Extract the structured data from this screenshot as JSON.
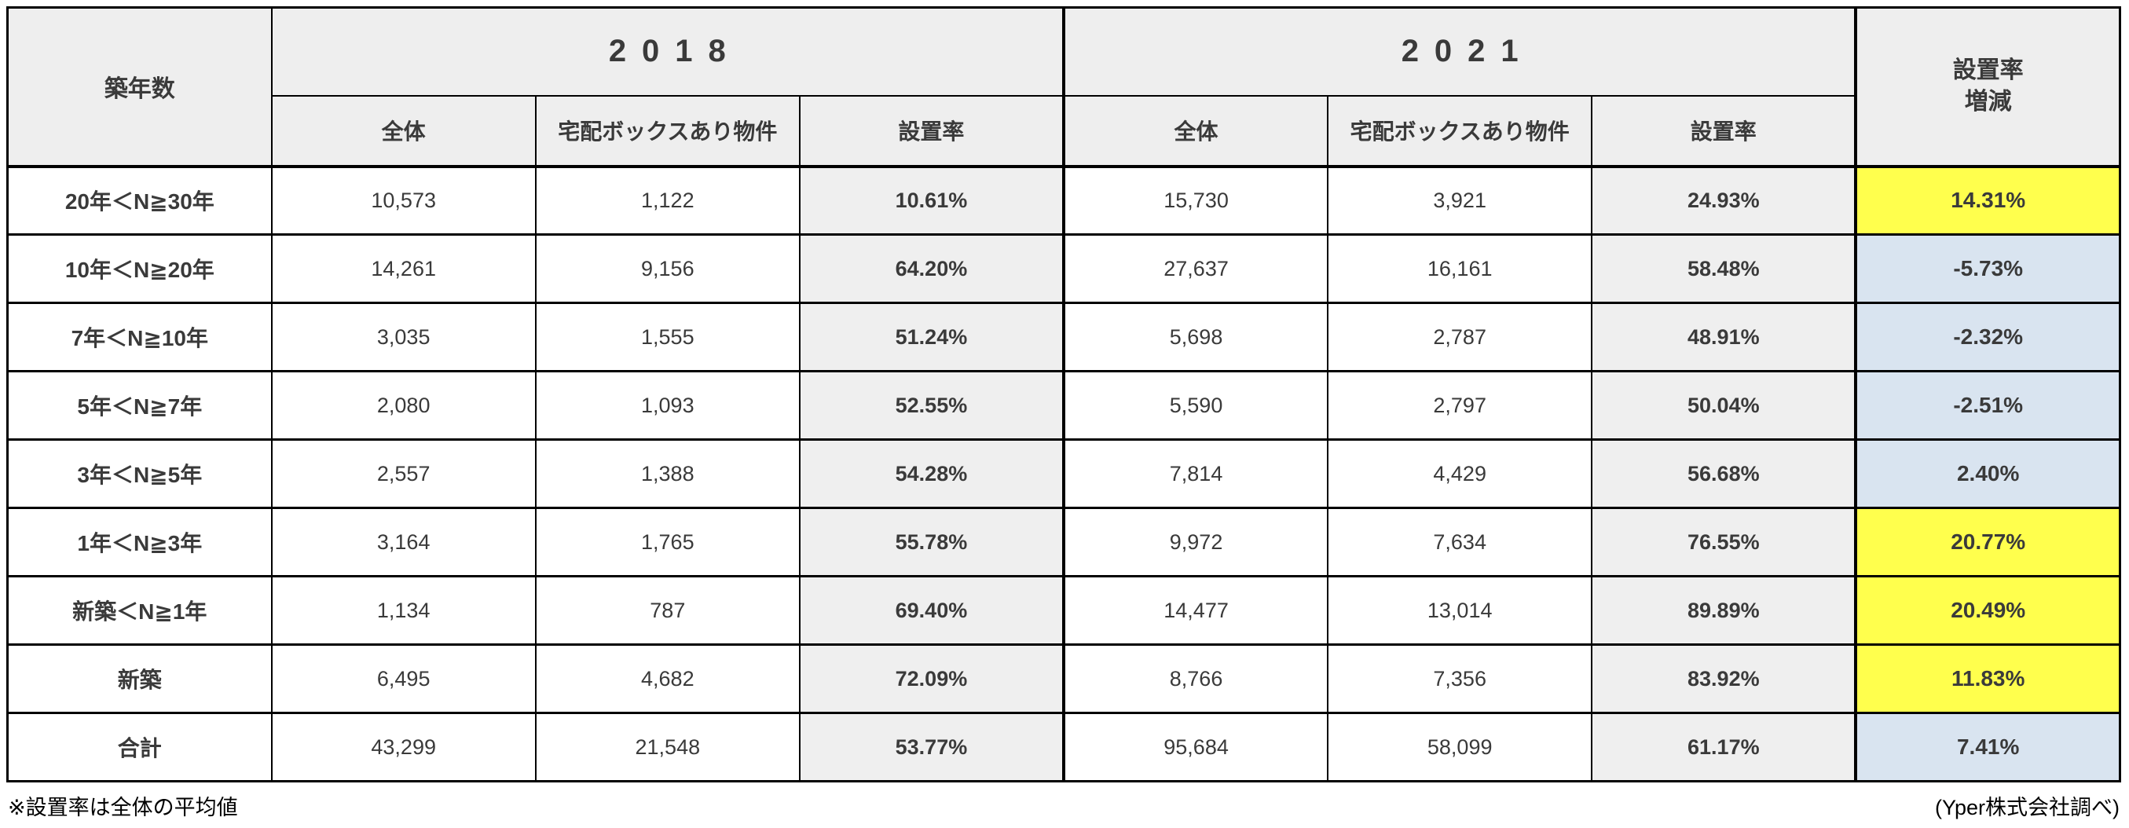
{
  "table": {
    "corner_header": "築年数",
    "group_2018": "2018",
    "group_2021": "2021",
    "change_header": "設置率\n増減",
    "sub_headers": {
      "total": "全体",
      "with_box": "宅配ボックスあり物件",
      "rate": "設置率"
    },
    "colors": {
      "header_bg": "#eeeeee",
      "rate_cell_bg": "#efefef",
      "highlight_yellow": "#ffff4d",
      "highlight_blue": "#d9e4f0",
      "border": "#000000",
      "text": "#3a3a3a"
    },
    "rows": [
      {
        "label": "20年＜N≧30年",
        "y2018": {
          "total": "10,573",
          "with_box": "1,122",
          "rate": "10.61%"
        },
        "y2021": {
          "total": "15,730",
          "with_box": "3,921",
          "rate": "24.93%"
        },
        "change": "14.31%",
        "highlight": "#ffff4d"
      },
      {
        "label": "10年＜N≧20年",
        "y2018": {
          "total": "14,261",
          "with_box": "9,156",
          "rate": "64.20%"
        },
        "y2021": {
          "total": "27,637",
          "with_box": "16,161",
          "rate": "58.48%"
        },
        "change": "-5.73%",
        "highlight": "#d9e4f0"
      },
      {
        "label": "7年＜N≧10年",
        "y2018": {
          "total": "3,035",
          "with_box": "1,555",
          "rate": "51.24%"
        },
        "y2021": {
          "total": "5,698",
          "with_box": "2,787",
          "rate": "48.91%"
        },
        "change": "-2.32%",
        "highlight": "#d9e4f0"
      },
      {
        "label": "5年＜N≧7年",
        "y2018": {
          "total": "2,080",
          "with_box": "1,093",
          "rate": "52.55%"
        },
        "y2021": {
          "total": "5,590",
          "with_box": "2,797",
          "rate": "50.04%"
        },
        "change": "-2.51%",
        "highlight": "#d9e4f0"
      },
      {
        "label": "3年＜N≧5年",
        "y2018": {
          "total": "2,557",
          "with_box": "1,388",
          "rate": "54.28%"
        },
        "y2021": {
          "total": "7,814",
          "with_box": "4,429",
          "rate": "56.68%"
        },
        "change": "2.40%",
        "highlight": "#d9e4f0"
      },
      {
        "label": "1年＜N≧3年",
        "y2018": {
          "total": "3,164",
          "with_box": "1,765",
          "rate": "55.78%"
        },
        "y2021": {
          "total": "9,972",
          "with_box": "7,634",
          "rate": "76.55%"
        },
        "change": "20.77%",
        "highlight": "#ffff4d"
      },
      {
        "label": "新築＜N≧1年",
        "y2018": {
          "total": "1,134",
          "with_box": "787",
          "rate": "69.40%"
        },
        "y2021": {
          "total": "14,477",
          "with_box": "13,014",
          "rate": "89.89%"
        },
        "change": "20.49%",
        "highlight": "#ffff4d"
      },
      {
        "label": "新築",
        "y2018": {
          "total": "6,495",
          "with_box": "4,682",
          "rate": "72.09%"
        },
        "y2021": {
          "total": "8,766",
          "with_box": "7,356",
          "rate": "83.92%"
        },
        "change": "11.83%",
        "highlight": "#ffff4d"
      },
      {
        "label": "合計",
        "y2018": {
          "total": "43,299",
          "with_box": "21,548",
          "rate": "53.77%"
        },
        "y2021": {
          "total": "95,684",
          "with_box": "58,099",
          "rate": "61.17%"
        },
        "change": "7.41%",
        "highlight": "#d9e4f0"
      }
    ]
  },
  "footnotes": {
    "left": "※設置率は全体の平均値",
    "right": "(Yper株式会社調べ)"
  }
}
